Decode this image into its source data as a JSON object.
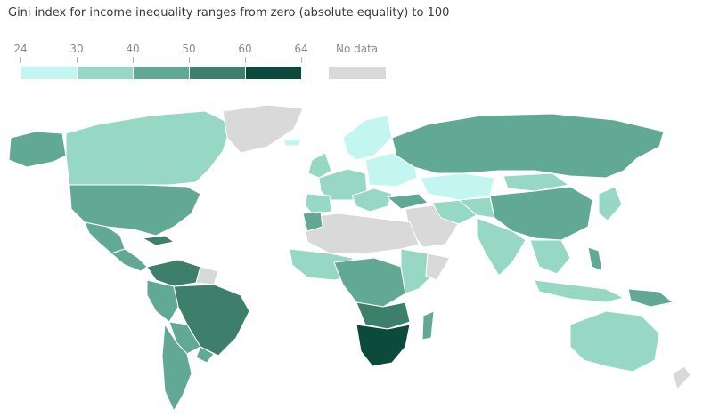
{
  "subtitle": "Gini index for income inequality ranges from zero (absolute equality) to 100",
  "legend": {
    "stops": [
      {
        "label": "24",
        "value": 24
      },
      {
        "label": "30",
        "value": 30
      },
      {
        "label": "40",
        "value": 40
      },
      {
        "label": "50",
        "value": 50
      },
      {
        "label": "60",
        "value": 60
      },
      {
        "label": "64",
        "value": 64
      }
    ],
    "bins": [
      {
        "from": 24,
        "to": 30,
        "color": "#c3f6f1"
      },
      {
        "from": 30,
        "to": 40,
        "color": "#97d8c4"
      },
      {
        "from": 40,
        "to": 50,
        "color": "#62a995"
      },
      {
        "from": 50,
        "to": 60,
        "color": "#3e7f6c"
      },
      {
        "from": 60,
        "to": 64,
        "color": "#0c4b3c"
      }
    ],
    "no_data": {
      "label": "No data",
      "color": "#d9d9d9"
    }
  }
}
